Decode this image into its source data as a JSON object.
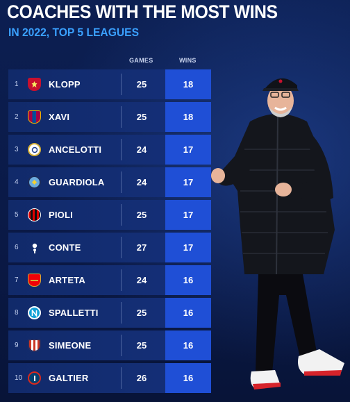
{
  "header": {
    "title": "COACHES WITH THE MOST WINS",
    "subtitle": "IN 2022, TOP 5 LEAGUES"
  },
  "columns": {
    "games": "GAMES",
    "wins": "WINS"
  },
  "colors": {
    "background": "#0a1a44",
    "row": "#112a6a",
    "wins_cell": "#1f4fd6",
    "subtitle": "#3aa0ff"
  },
  "rows": [
    {
      "rank": "1",
      "name": "KLOPP",
      "games": "25",
      "wins": "18",
      "crest": "liverpool-crest-icon"
    },
    {
      "rank": "2",
      "name": "XAVI",
      "games": "25",
      "wins": "18",
      "crest": "barcelona-crest-icon"
    },
    {
      "rank": "3",
      "name": "ANCELOTTI",
      "games": "24",
      "wins": "17",
      "crest": "real-madrid-crest-icon"
    },
    {
      "rank": "4",
      "name": "GUARDIOLA",
      "games": "24",
      "wins": "17",
      "crest": "man-city-crest-icon"
    },
    {
      "rank": "5",
      "name": "PIOLI",
      "games": "25",
      "wins": "17",
      "crest": "ac-milan-crest-icon"
    },
    {
      "rank": "6",
      "name": "CONTE",
      "games": "27",
      "wins": "17",
      "crest": "tottenham-crest-icon"
    },
    {
      "rank": "7",
      "name": "ARTETA",
      "games": "24",
      "wins": "16",
      "crest": "arsenal-crest-icon"
    },
    {
      "rank": "8",
      "name": "SPALLETTI",
      "games": "25",
      "wins": "16",
      "crest": "napoli-crest-icon"
    },
    {
      "rank": "9",
      "name": "SIMEONE",
      "games": "25",
      "wins": "16",
      "crest": "atletico-crest-icon"
    },
    {
      "rank": "10",
      "name": "GALTIER",
      "games": "26",
      "wins": "16",
      "crest": "psg-crest-icon"
    }
  ]
}
